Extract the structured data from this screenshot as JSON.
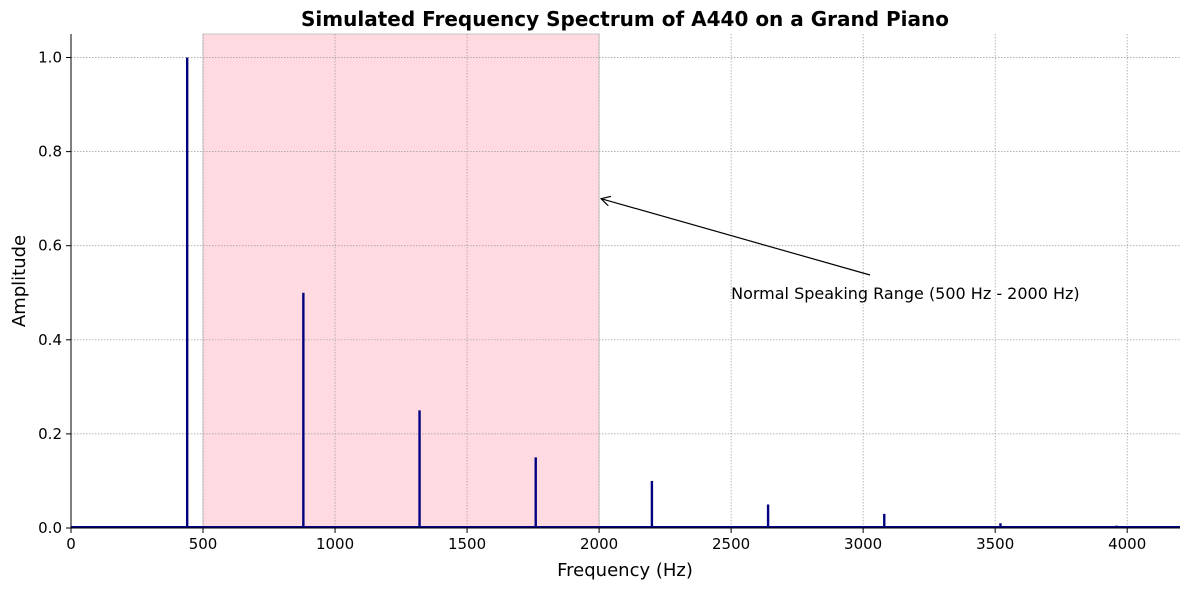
{
  "chart_data": {
    "type": "line",
    "title": "Simulated Frequency Spectrum of A440 on a Grand Piano",
    "xlabel": "Frequency (Hz)",
    "ylabel": "Amplitude",
    "xlim": [
      0,
      4200
    ],
    "ylim": [
      0,
      1.05
    ],
    "xticks": [
      0,
      500,
      1000,
      1500,
      2000,
      2500,
      3000,
      3500,
      4000
    ],
    "xtick_labels": [
      "0",
      "500",
      "1000",
      "1500",
      "2000",
      "2500",
      "3000",
      "3500",
      "4000"
    ],
    "yticks": [
      0.0,
      0.2,
      0.4,
      0.6,
      0.8,
      1.0
    ],
    "ytick_labels": [
      "0.0",
      "0.2",
      "0.4",
      "0.6",
      "0.8",
      "1.0"
    ],
    "grid": true,
    "series": [
      {
        "color": "#000080",
        "peaks": [
          {
            "x": 440,
            "y": 1.0
          },
          {
            "x": 880,
            "y": 0.5
          },
          {
            "x": 1320,
            "y": 0.25
          },
          {
            "x": 1760,
            "y": 0.15
          },
          {
            "x": 2200,
            "y": 0.1
          },
          {
            "x": 2640,
            "y": 0.05
          },
          {
            "x": 3080,
            "y": 0.03
          },
          {
            "x": 3520,
            "y": 0.01
          },
          {
            "x": 3960,
            "y": 0.005
          }
        ]
      }
    ],
    "shaded_region": {
      "x_start": 500,
      "x_end": 2000,
      "color": "#ffb6c1"
    },
    "annotation": {
      "text": "Normal Speaking Range (500 Hz - 2000 Hz)",
      "xy": [
        2000,
        0.7
      ],
      "xytext": [
        2500,
        0.5
      ]
    }
  }
}
